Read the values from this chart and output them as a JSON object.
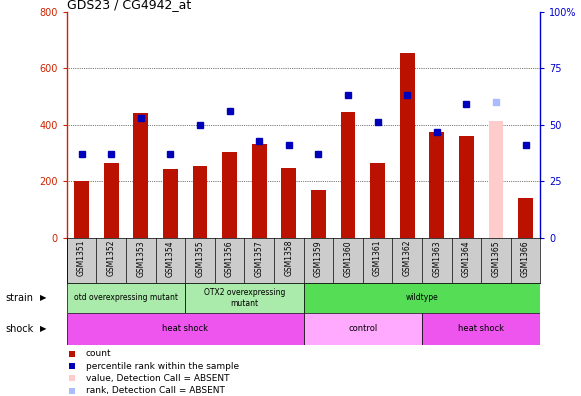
{
  "title": "GDS23 / CG4942_at",
  "samples": [
    "GSM1351",
    "GSM1352",
    "GSM1353",
    "GSM1354",
    "GSM1355",
    "GSM1356",
    "GSM1357",
    "GSM1358",
    "GSM1359",
    "GSM1360",
    "GSM1361",
    "GSM1362",
    "GSM1363",
    "GSM1364",
    "GSM1365",
    "GSM1366"
  ],
  "counts": [
    200,
    265,
    440,
    243,
    255,
    305,
    330,
    248,
    170,
    445,
    265,
    655,
    375,
    360,
    415,
    140
  ],
  "ranks": [
    37,
    37,
    53,
    37,
    50,
    56,
    43,
    41,
    37,
    63,
    51,
    63,
    47,
    59,
    60,
    41
  ],
  "absent_indices": [
    14
  ],
  "ylim_left": [
    0,
    800
  ],
  "ylim_right": [
    0,
    100
  ],
  "yticks_left": [
    0,
    200,
    400,
    600,
    800
  ],
  "yticks_right": [
    0,
    25,
    50,
    75,
    100
  ],
  "strain_boundaries": [
    {
      "start": 0,
      "end": 4,
      "label": "otd overexpressing mutant",
      "color": "#AAEAAA"
    },
    {
      "start": 4,
      "end": 8,
      "label": "OTX2 overexpressing\nmutant",
      "color": "#AAEAAA"
    },
    {
      "start": 8,
      "end": 16,
      "label": "wildtype",
      "color": "#55DD55"
    }
  ],
  "shock_boundaries": [
    {
      "start": 0,
      "end": 8,
      "label": "heat shock",
      "color": "#EE55EE"
    },
    {
      "start": 8,
      "end": 12,
      "label": "control",
      "color": "#FFAAFF"
    },
    {
      "start": 12,
      "end": 16,
      "label": "heat shock",
      "color": "#EE55EE"
    }
  ],
  "bar_color": "#BB1100",
  "absent_bar_color": "#FFCCCC",
  "dot_color": "#0000BB",
  "absent_dot_color": "#AABBFF",
  "bg_color": "#CCCCCC",
  "left_axis_color": "#CC2200",
  "right_axis_color": "#0000CC",
  "legend_items": [
    {
      "color": "#BB1100",
      "label": "count"
    },
    {
      "color": "#0000BB",
      "label": "percentile rank within the sample"
    },
    {
      "color": "#FFCCCC",
      "label": "value, Detection Call = ABSENT"
    },
    {
      "color": "#AABBFF",
      "label": "rank, Detection Call = ABSENT"
    }
  ]
}
